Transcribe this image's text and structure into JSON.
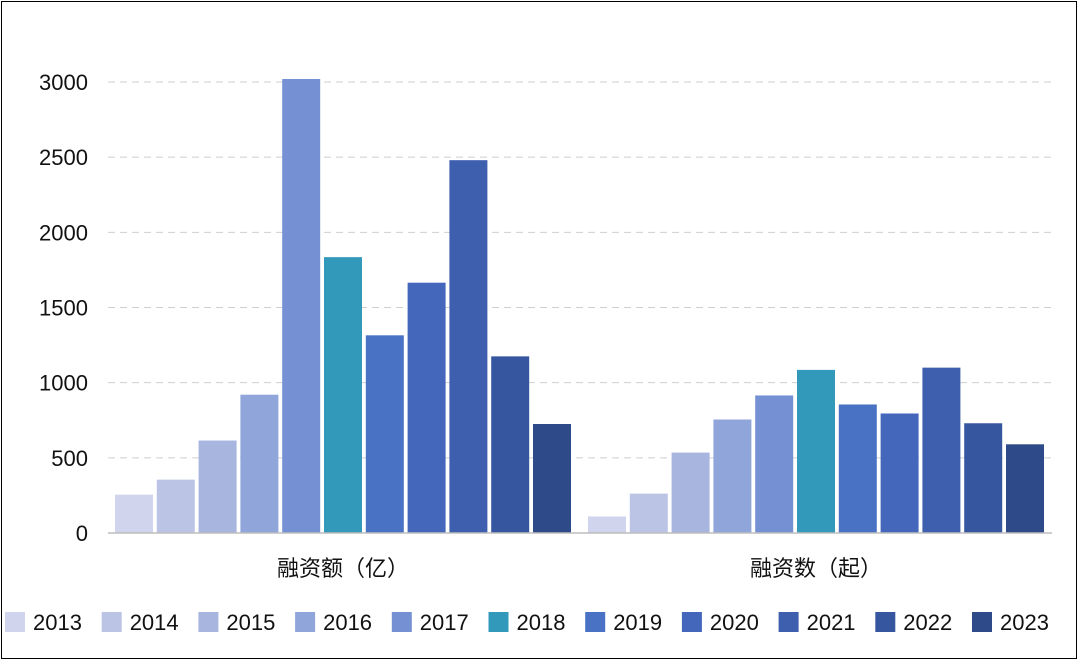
{
  "chart_data": {
    "type": "bar",
    "categories": [
      "融资额（亿）",
      "融资数（起）"
    ],
    "series": [
      {
        "name": "2013",
        "color": "#d0d4ec",
        "values": [
          255,
          110
        ]
      },
      {
        "name": "2014",
        "color": "#bcc4e6",
        "values": [
          355,
          262
        ]
      },
      {
        "name": "2015",
        "color": "#a8b5df",
        "values": [
          615,
          535
        ]
      },
      {
        "name": "2016",
        "color": "#90a6da",
        "values": [
          920,
          755
        ]
      },
      {
        "name": "2017",
        "color": "#7591d4",
        "values": [
          3020,
          915
        ]
      },
      {
        "name": "2018",
        "color": "#3399bb",
        "values": [
          1835,
          1085
        ]
      },
      {
        "name": "2019",
        "color": "#4a72c4",
        "values": [
          1315,
          855
        ]
      },
      {
        "name": "2020",
        "color": "#4467bb",
        "values": [
          1665,
          795
        ]
      },
      {
        "name": "2021",
        "color": "#3d5fae",
        "values": [
          2480,
          1100
        ]
      },
      {
        "name": "2022",
        "color": "#36579f",
        "values": [
          1175,
          730
        ]
      },
      {
        "name": "2023",
        "color": "#2e4a88",
        "values": [
          725,
          590
        ]
      }
    ],
    "yticks": [
      0,
      500,
      1000,
      1500,
      2000,
      2500,
      3000
    ],
    "ylim": [
      0,
      3000
    ],
    "grid": true,
    "legend_position": "bottom"
  }
}
